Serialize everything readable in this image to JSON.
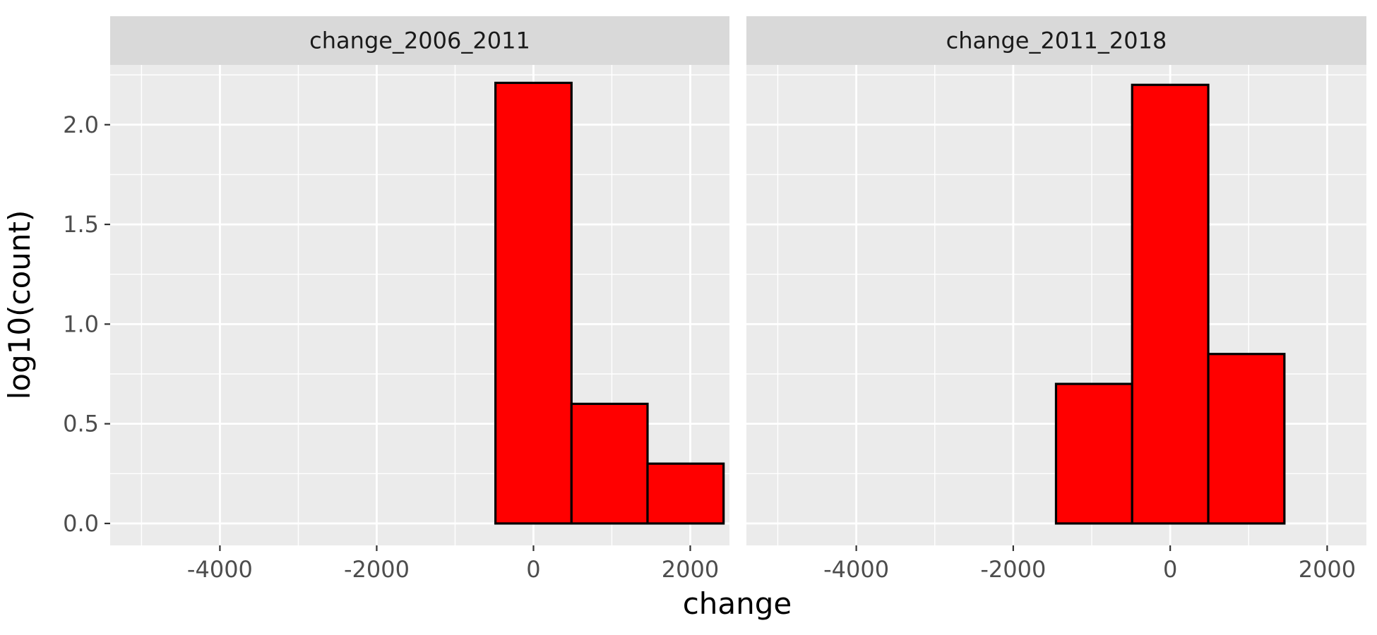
{
  "chart_data": {
    "type": "bar",
    "subtype": "faceted histogram",
    "xlabel": "change",
    "ylabel": "log10(count)",
    "xlim": [
      -5400,
      2500
    ],
    "ylim": [
      -0.11,
      2.3
    ],
    "x_ticks": [
      -4000,
      -2000,
      0,
      2000
    ],
    "x_tick_labels": [
      "-4000",
      "-2000",
      "0",
      "2000"
    ],
    "y_ticks": [
      0.0,
      0.5,
      1.0,
      1.5,
      2.0
    ],
    "y_tick_labels": [
      "0.0",
      "0.5",
      "1.0",
      "1.5",
      "2.0"
    ],
    "grid": true,
    "bar_fill": "#ff0000",
    "bar_outline": "#000000",
    "panel_background": "#ebebeb",
    "strip_background": "#d9d9d9",
    "bin_width": 970,
    "facets": [
      {
        "strip": "change_2006_2011",
        "bins": [
          {
            "center": -4378,
            "value": 0.0
          },
          {
            "center": -3408,
            "value": 0.0
          },
          {
            "center": -2438,
            "value": 0.0
          },
          {
            "center": -1468,
            "value": 0.0
          },
          {
            "center": 0,
            "value": 2.21
          },
          {
            "center": 970,
            "value": 0.6
          },
          {
            "center": 1940,
            "value": 0.3
          }
        ]
      },
      {
        "strip": "change_2011_2018",
        "bins": [
          {
            "center": -970,
            "value": 0.7
          },
          {
            "center": 0,
            "value": 2.2
          },
          {
            "center": 970,
            "value": 0.85
          },
          {
            "center": 1940,
            "value": 0.0
          }
        ]
      }
    ]
  }
}
